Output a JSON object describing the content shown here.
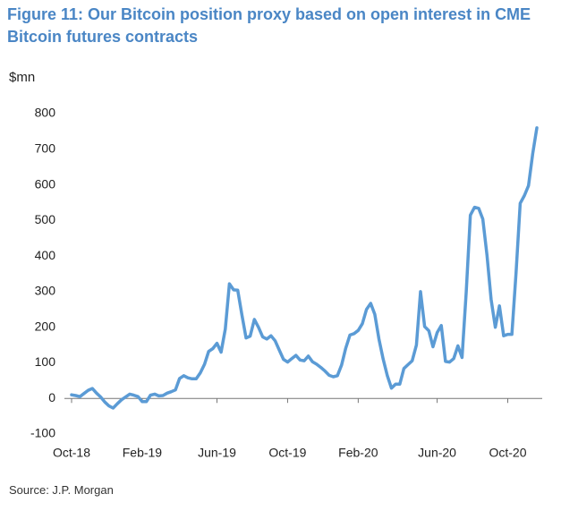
{
  "chart_data": {
    "type": "line",
    "title": "Figure 11: Our Bitcoin position proxy based on open interest in CME Bitcoin futures contracts",
    "y_label": "$mn",
    "source": "Source: J.P. Morgan",
    "categories": [
      "Oct-18",
      null,
      null,
      null,
      null,
      null,
      null,
      null,
      null,
      null,
      null,
      null,
      null,
      null,
      null,
      null,
      null,
      "Feb-19",
      null,
      null,
      null,
      null,
      null,
      null,
      null,
      null,
      null,
      null,
      null,
      null,
      null,
      null,
      null,
      null,
      null,
      "Jun-19",
      null,
      null,
      null,
      null,
      null,
      null,
      null,
      null,
      null,
      null,
      null,
      null,
      null,
      null,
      null,
      null,
      "Oct-19",
      null,
      null,
      null,
      null,
      null,
      null,
      null,
      null,
      null,
      null,
      null,
      null,
      null,
      null,
      null,
      null,
      "Feb-20",
      null,
      null,
      null,
      null,
      null,
      null,
      null,
      null,
      null,
      null,
      null,
      null,
      null,
      null,
      null,
      null,
      null,
      null,
      "Jun-20",
      null,
      null,
      null,
      null,
      null,
      null,
      null,
      null,
      null,
      null,
      null,
      null,
      null,
      null,
      null,
      null,
      "Oct-20",
      null,
      null,
      null,
      null,
      null,
      null,
      null
    ],
    "series": [
      {
        "name": "Bitcoin position proxy",
        "color": "#5b9bd5",
        "values": [
          10,
          8,
          5,
          14,
          23,
          28,
          15,
          4,
          -10,
          -21,
          -27,
          -15,
          -4,
          4,
          12,
          9,
          5,
          -9,
          -9,
          9,
          12,
          7,
          8,
          15,
          19,
          24,
          56,
          64,
          58,
          55,
          55,
          72,
          96,
          132,
          140,
          155,
          130,
          195,
          322,
          305,
          304,
          234,
          170,
          175,
          222,
          200,
          173,
          167,
          176,
          162,
          136,
          110,
          102,
          112,
          121,
          108,
          106,
          119,
          103,
          96,
          87,
          77,
          65,
          61,
          64,
          94,
          141,
          178,
          182,
          191,
          210,
          250,
          267,
          236,
          166,
          111,
          64,
          29,
          40,
          40,
          84,
          95,
          106,
          150,
          300,
          202,
          190,
          145,
          185,
          205,
          104,
          102,
          112,
          148,
          115,
          300,
          515,
          537,
          534,
          504,
          402,
          278,
          200,
          260,
          176,
          180,
          180,
          354,
          548,
          570,
          598,
          688,
          760
        ]
      }
    ],
    "ylim": [
      -100,
      800
    ],
    "yticks": [
      -100,
      0,
      100,
      200,
      300,
      400,
      500,
      600,
      700,
      800
    ],
    "grid": false
  }
}
